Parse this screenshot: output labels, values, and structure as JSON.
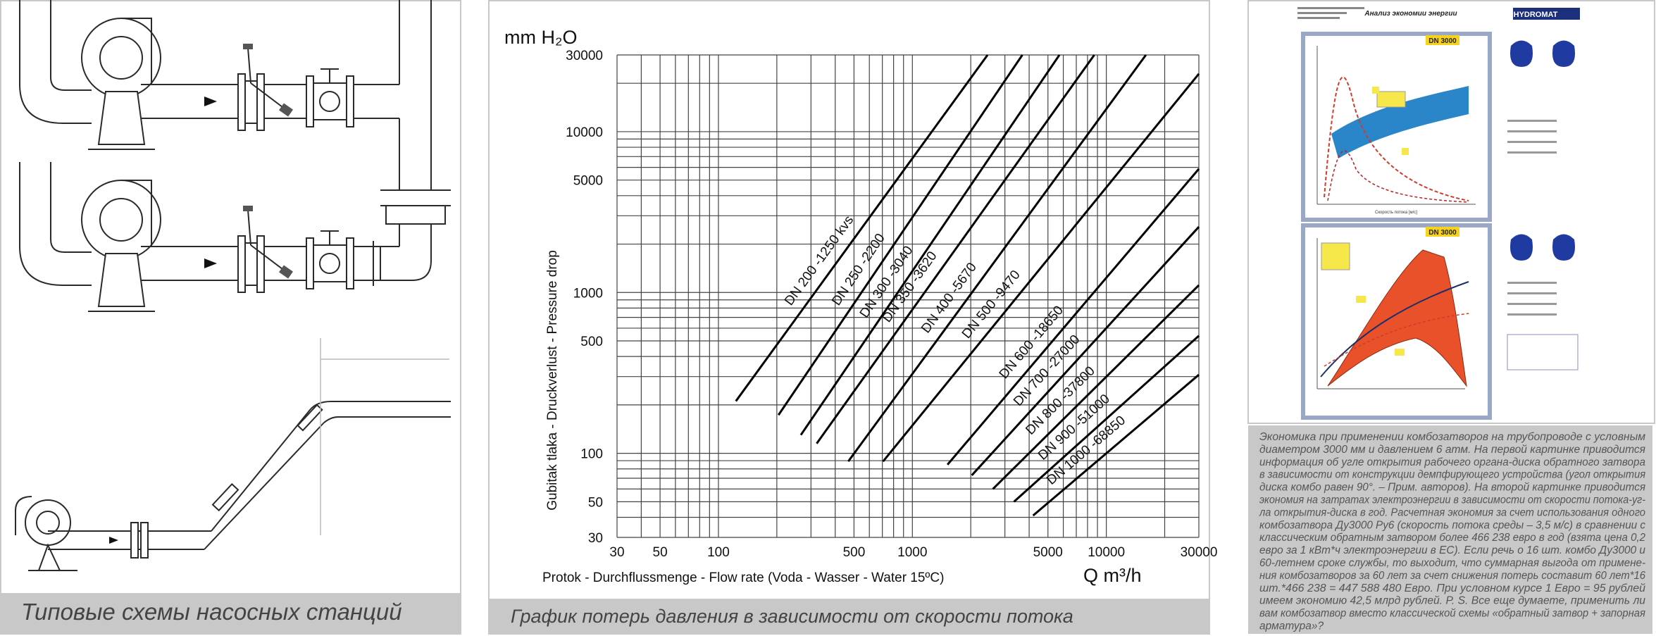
{
  "left_panel": {
    "caption": "Типовые схемы насосных станций"
  },
  "center_panel": {
    "caption": "График потерь давления в зависимости от скорости потока"
  },
  "chart_data": {
    "type": "line",
    "y_unit": "mm H₂O",
    "x_unit": "Q m³/h",
    "x_label": "Protok - Durchflussmenge - Flow rate (Voda - Wasser - Water 15ºC)",
    "y_label": "Gubitak tlaka - Druckverlust - Pressure drop",
    "log_x": true,
    "log_y": true,
    "color": "#000000",
    "xlim": [
      30,
      30000
    ],
    "ylim": [
      30,
      30000
    ],
    "xticks": [
      30,
      50,
      100,
      500,
      1000,
      5000,
      10000,
      30000
    ],
    "yticks": [
      30,
      50,
      100,
      500,
      1000,
      5000,
      10000,
      30000
    ],
    "xgrid": [
      30,
      40,
      50,
      60,
      70,
      80,
      90,
      100,
      200,
      300,
      400,
      500,
      600,
      700,
      800,
      900,
      1000,
      2000,
      3000,
      4000,
      5000,
      6000,
      7000,
      8000,
      9000,
      10000,
      20000,
      30000
    ],
    "ygrid": [
      30,
      40,
      50,
      60,
      70,
      80,
      90,
      100,
      200,
      300,
      400,
      500,
      600,
      700,
      800,
      900,
      1000,
      2000,
      3000,
      4000,
      5000,
      6000,
      7000,
      8000,
      9000,
      10000,
      20000,
      30000
    ],
    "series": [
      {
        "name": "DN 200 -1250 kvs",
        "x": [
          123,
          2442
        ],
        "values": [
          211,
          30000
        ]
      },
      {
        "name": "DN 250 -2200",
        "x": [
          204,
          3690
        ],
        "values": [
          173,
          30000
        ]
      },
      {
        "name": "DN 300 -3040",
        "x": [
          266,
          5730
        ],
        "values": [
          130,
          30000
        ]
      },
      {
        "name": "DN 350 -3620",
        "x": [
          321,
          8670
        ],
        "values": [
          115,
          30000
        ]
      },
      {
        "name": "DN 400 -5670",
        "x": [
          467,
          16000
        ],
        "values": [
          89,
          30000
        ]
      },
      {
        "name": "DN 500 -9470",
        "x": [
          706,
          30000
        ],
        "values": [
          89,
          22900
        ]
      },
      {
        "name": "DN 600 -18650",
        "x": [
          1517,
          30000
        ],
        "values": [
          85,
          5870
        ]
      },
      {
        "name": "DN 700 -27000",
        "x": [
          2025,
          30000
        ],
        "values": [
          73,
          2560
        ]
      },
      {
        "name": "DN 800 -37800",
        "x": [
          2600,
          30000
        ],
        "values": [
          60,
          1110
        ]
      },
      {
        "name": "DN 900 -51000",
        "x": [
          3340,
          30000
        ],
        "values": [
          50,
          538
        ]
      },
      {
        "name": "DN 1000 -68850",
        "x": [
          4190,
          30000
        ],
        "values": [
          41,
          308
        ]
      }
    ]
  },
  "right_panel": {
    "document": {
      "title": "Анализ экономии энергии",
      "logo": "HYDROMAT",
      "chart1_title": "DN 3000",
      "chart2_title": "DN 3000",
      "x_axis": "Скорость потока [м/с]"
    },
    "paragraph": [
      "Экономика при применении комбозатворов на трубопроводе с условным",
      "диаметром 3000 мм и давлением 6 атм. На первой картинке приводится",
      "информация об угле открытия рабочего органа-диска обратного затвора",
      "в зависимости от конструкции демпфирующего устройства (угол открытия",
      "диска комбо равен 90°. – Прим. авторов). На второй картинке приводится",
      "экономия на затратах электроэнергии в зависимости от скорости потока-уг-",
      "ла открытия-диска в год. Расчетная экономия за счет использования одного",
      "комбозатвора Ду3000 Ру6 (скорость потока среды – 3,5 м/с) в сравнении с",
      "классическим обратным затвором более 466 238 евро в год (взята цена 0,2",
      "евро за 1 кВт*ч электроэнергии в ЕС). Если речь о 16 шт. комбо Ду3000 и",
      "60-летнем сроке службы, то выходит, что суммарная выгода от примене-",
      "ния комбозатворов за 60 лет за счет снижения потерь составит 60 лет*16",
      "шт.*466 238 = 447 588 480 Евро. При условном курсе 1 Евро = 95 рублей",
      "имеем экономию 42,5 млрд рублей. P. S. Все еще думаете, применить ли",
      "вам комбозатвор вместо классической схемы «обратный затвор + запорная",
      "арматура»?"
    ]
  }
}
